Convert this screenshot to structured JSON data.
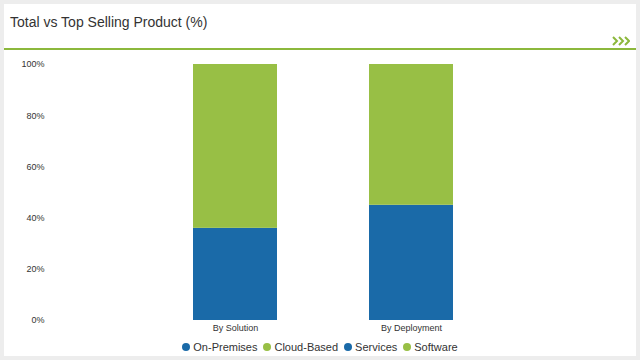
{
  "chart_data": {
    "type": "bar",
    "title": "Total vs Top Selling Product (%)",
    "categories": [
      "By Solution",
      "By Deployment"
    ],
    "series": [
      {
        "name": "On-Premises",
        "color": "#1a6aa8",
        "values": [
          null,
          45
        ]
      },
      {
        "name": "Cloud-Based",
        "color": "#98bf45",
        "values": [
          null,
          55
        ]
      },
      {
        "name": "Services",
        "color": "#1a6aa8",
        "values": [
          36,
          null
        ]
      },
      {
        "name": "Software",
        "color": "#98bf45",
        "values": [
          64,
          null
        ]
      }
    ],
    "stacked": true,
    "ylim": [
      0,
      100
    ],
    "yticks": [
      {
        "value": 0,
        "label": "0%"
      },
      {
        "value": 20,
        "label": "20%"
      },
      {
        "value": 40,
        "label": "40%"
      },
      {
        "value": 60,
        "label": "60%"
      },
      {
        "value": 80,
        "label": "80%"
      },
      {
        "value": 100,
        "label": "100%"
      }
    ],
    "grid": false,
    "legend": "bottom"
  }
}
